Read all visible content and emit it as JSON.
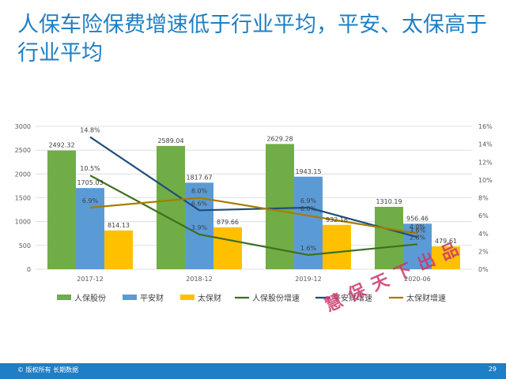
{
  "slide": {
    "title": "人保车险保费增速低于行业平均，平安、太保高于行业平均",
    "watermark": "慧保天下出品",
    "footer_copyright": "© 版权所有 长期数据",
    "page_number": "29"
  },
  "colors": {
    "title": "#1f7fc4",
    "footer": "#1e7fc6",
    "renbao": "#70ad47",
    "pingan": "#5b9bd5",
    "taibao": "#ffc000",
    "renbao_growth": "#3f6f1f",
    "pingan_growth": "#1f4e79",
    "taibao_growth": "#a67c00"
  },
  "chart_data": {
    "type": "bar",
    "combo": "bar + line (secondary axis)",
    "categories": [
      "2017-12",
      "2018-12",
      "2019-12",
      "2020-06"
    ],
    "ylim": [
      0,
      3000
    ],
    "yticks": [
      0,
      500,
      1000,
      1500,
      2000,
      2500,
      3000
    ],
    "y2lim": [
      0,
      16
    ],
    "y2ticks": [
      0,
      2,
      4,
      6,
      8,
      10,
      12,
      14,
      16
    ],
    "y2_unit": "%",
    "grid": true,
    "legend_position": "bottom",
    "bar_series": [
      {
        "name": "人保股份",
        "color": "#70ad47",
        "values": [
          2492.32,
          2589.04,
          2629.28,
          1310.19
        ],
        "labels": [
          "2492.32",
          "2589.04",
          "2629.28",
          "1310.19"
        ]
      },
      {
        "name": "平安财",
        "color": "#5b9bd5",
        "values": [
          1705.03,
          1817.67,
          1943.15,
          956.46
        ],
        "labels": [
          "1705.03",
          "1817.67",
          "1943.15",
          "956.46"
        ]
      },
      {
        "name": "太保财",
        "color": "#ffc000",
        "values": [
          814.13,
          879.66,
          932.18,
          479.61
        ],
        "labels": [
          "814.13",
          "879.66",
          "932.18",
          "479.61"
        ]
      }
    ],
    "line_series": [
      {
        "name": "人保股份增速",
        "color": "#3f6f1f",
        "values": [
          10.5,
          3.9,
          1.6,
          2.8
        ],
        "labels": [
          "10.5%",
          "3.9%",
          "1.6%",
          "2.8%"
        ]
      },
      {
        "name": "平安财增速",
        "color": "#1f4e79",
        "values": [
          14.8,
          6.6,
          6.9,
          3.6
        ],
        "labels": [
          "14.8%",
          "6.6%",
          "6.9%",
          "3.6%"
        ]
      },
      {
        "name": "太保财增速",
        "color": "#a67c00",
        "values": [
          6.9,
          8.0,
          6.0,
          4.0
        ],
        "labels": [
          "6.9%",
          "8.0%",
          "6.0%",
          "4.0%"
        ]
      }
    ]
  }
}
